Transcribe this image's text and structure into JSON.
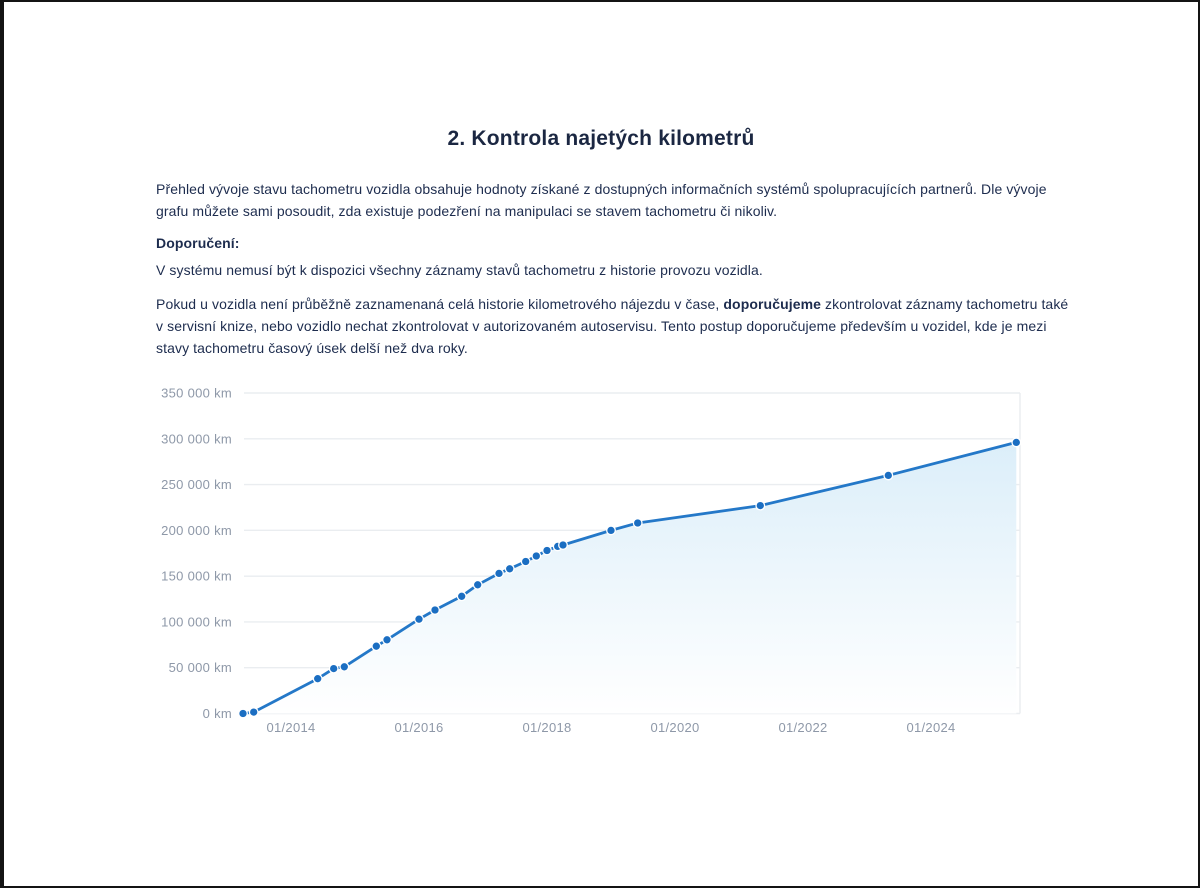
{
  "page": {
    "title": "2. Kontrola najetých kilometrů",
    "intro_lines": [
      "Přehled vývoje stavu tachometru vozidla obsahuje hodnoty získané z dostupných informačních systémů spolupracujících partnerů. Dle vývoje",
      "grafu můžete sami posoudit, zda existuje podezření na manipulaci se stavem tachometru či nikoliv."
    ],
    "recommendation_label": "Doporučení:",
    "availability_note": "V systému nemusí být k dispozici všechny záznamy stavů tachometru z historie provozu vozidla.",
    "advice": {
      "line1_pre": "Pokud u vozidla není průběžně zaznamenaná celá historie kilometrového nájezdu v čase, ",
      "line1_bold": "doporučujeme",
      "line1_post": " zkontrolovat záznamy tachometru také",
      "line2": "v servisní knize, nebo vozidlo nechat zkontrolovat v autorizovaném autoservisu. Tento postup doporučujeme především u vozidel, kde je mezi",
      "line3": "stavy tachometru časový úsek delší než dva roky."
    }
  },
  "chart_data": {
    "type": "line",
    "title": "",
    "xlabel": "",
    "ylabel": "",
    "ylim": [
      0,
      350000
    ],
    "grid": "horizontal",
    "legend": "none",
    "y_ticks": [
      {
        "value": 0,
        "label": "0 km"
      },
      {
        "value": 50000,
        "label": "50 000 km"
      },
      {
        "value": 100000,
        "label": "100 000 km"
      },
      {
        "value": 150000,
        "label": "150 000 km"
      },
      {
        "value": 200000,
        "label": "200 000 km"
      },
      {
        "value": 250000,
        "label": "250 000 km"
      },
      {
        "value": 300000,
        "label": "300 000 km"
      },
      {
        "value": 350000,
        "label": "350 000 km"
      }
    ],
    "x_ticks": [
      "01/2014",
      "01/2016",
      "01/2018",
      "01/2020",
      "01/2022",
      "01/2024"
    ],
    "series": [
      {
        "name": "stav-tachometru",
        "points": [
          {
            "date": "04/2013",
            "km": 0
          },
          {
            "date": "06/2013",
            "km": 1500
          },
          {
            "date": "06/2014",
            "km": 38000
          },
          {
            "date": "09/2014",
            "km": 49000
          },
          {
            "date": "11/2014",
            "km": 51000
          },
          {
            "date": "05/2015",
            "km": 73500
          },
          {
            "date": "07/2015",
            "km": 80500
          },
          {
            "date": "01/2016",
            "km": 103000
          },
          {
            "date": "04/2016",
            "km": 113000
          },
          {
            "date": "09/2016",
            "km": 128000
          },
          {
            "date": "12/2016",
            "km": 140500
          },
          {
            "date": "04/2017",
            "km": 153000
          },
          {
            "date": "06/2017",
            "km": 158000
          },
          {
            "date": "09/2017",
            "km": 166000
          },
          {
            "date": "11/2017",
            "km": 172000
          },
          {
            "date": "01/2018",
            "km": 178000
          },
          {
            "date": "03/2018",
            "km": 182500
          },
          {
            "date": "04/2018",
            "km": 184000
          },
          {
            "date": "01/2019",
            "km": 200000
          },
          {
            "date": "06/2019",
            "km": 208000
          },
          {
            "date": "05/2021",
            "km": 227000
          },
          {
            "date": "05/2023",
            "km": 260000
          },
          {
            "date": "05/2025",
            "km": 296000
          }
        ]
      }
    ],
    "colors": {
      "line": "#2478c8",
      "dot": "#1b6ec2",
      "dot_rim": "#ffffff",
      "area_top": "#d5ebf8",
      "area_bottom": "#ffffff",
      "grid": "#eaedf0",
      "axis_label": "#8e98a8"
    }
  }
}
